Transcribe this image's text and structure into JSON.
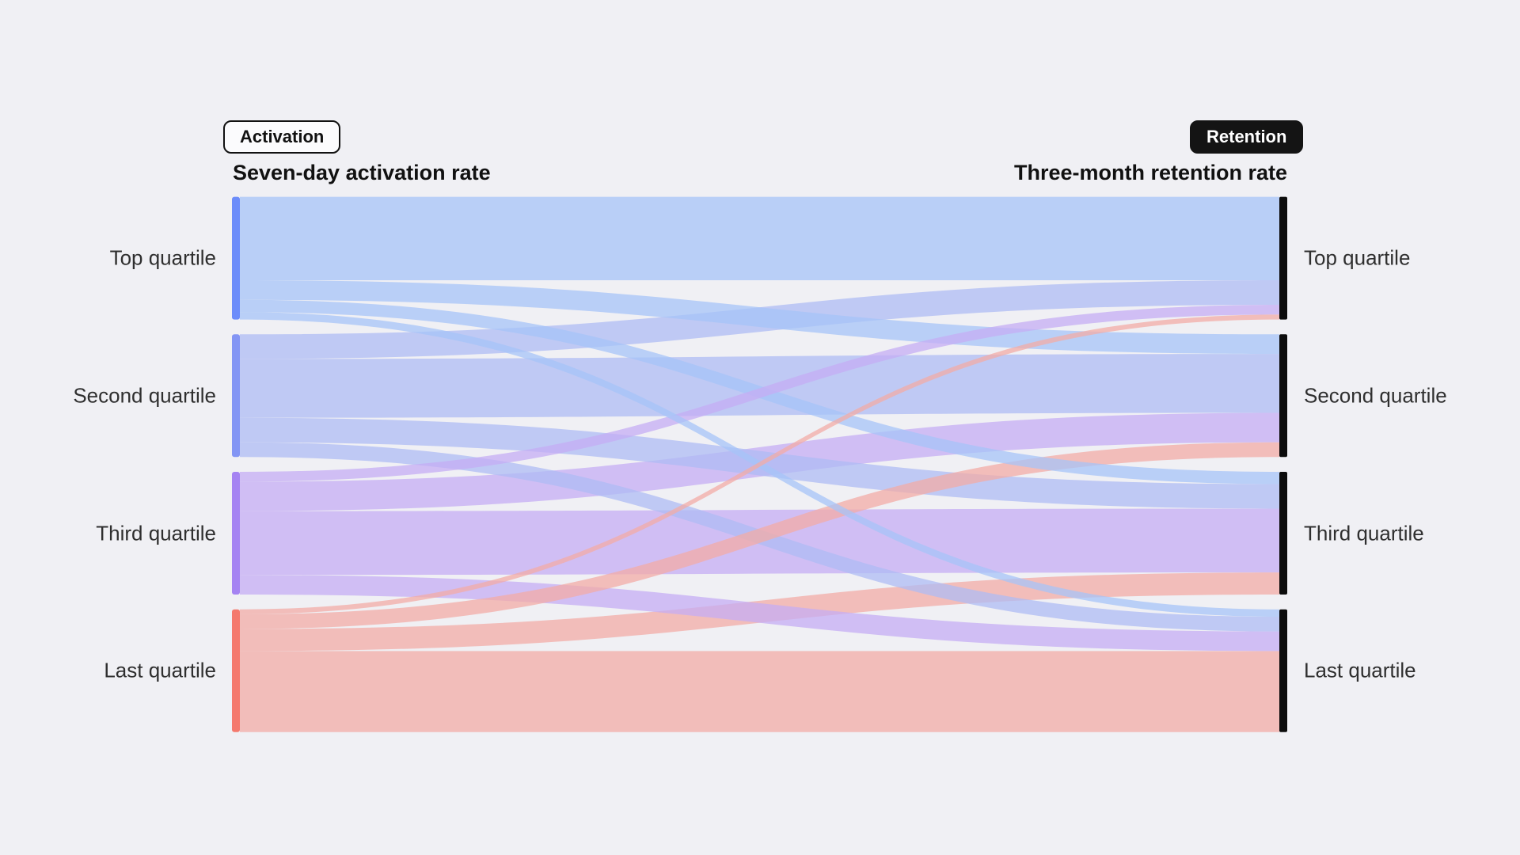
{
  "background": "#f0f0f4",
  "toggle": {
    "buttons": [
      {
        "label": "Activation",
        "selected": false
      },
      {
        "label": "Retention",
        "selected": true
      }
    ]
  },
  "chart_data": {
    "type": "sankey",
    "left_axis_title": "Seven-day activation rate",
    "right_axis_title": "Three-month retention rate",
    "source_nodes": [
      "Top quartile",
      "Second quartile",
      "Third quartile",
      "Last quartile"
    ],
    "target_nodes": [
      "Top quartile",
      "Second quartile",
      "Third quartile",
      "Last quartile"
    ],
    "node_values_pct": [
      25,
      25,
      25,
      25
    ],
    "flow_matrix_pct": {
      "units": "percent of all users; rows = activation quartile (source), columns = retention quartile (target), estimated from band thickness",
      "rows": [
        [
          17.0,
          4.0,
          2.5,
          1.5
        ],
        [
          5.0,
          12.0,
          5.0,
          3.0
        ],
        [
          2.0,
          6.0,
          13.0,
          4.0
        ],
        [
          1.0,
          3.0,
          4.5,
          16.5
        ]
      ]
    },
    "colors": {
      "source_node": [
        "#6c8cfa",
        "#8395f4",
        "#a583f2",
        "#f4796d"
      ],
      "flow": [
        "#a6c4f8",
        "#aebbf4",
        "#c5adf4",
        "#f3aca6"
      ],
      "target_node": "#0c0c0c"
    },
    "flow_opacity": 0.74
  }
}
